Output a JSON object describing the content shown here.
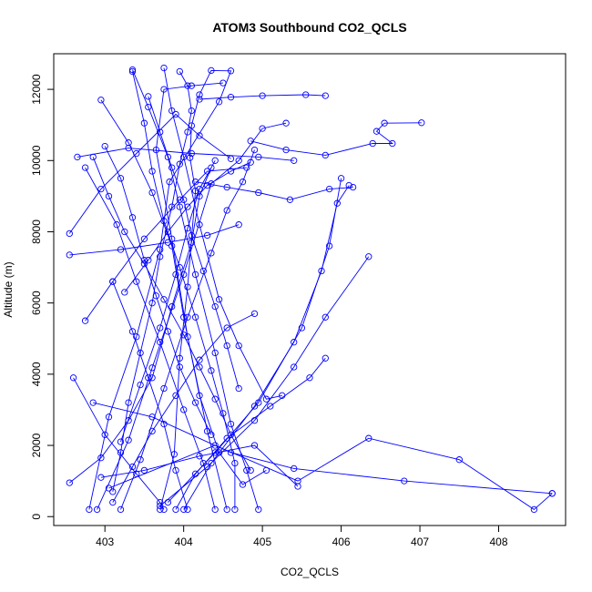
{
  "chart_data": {
    "type": "line",
    "title": "ATOM3 Southbound CO2_QCLS",
    "xlabel": "CO2_QCLS",
    "ylabel": "Altitude (m)",
    "xlim": [
      402.35,
      408.85
    ],
    "ylim": [
      -250,
      13000
    ],
    "xticks": [
      "403",
      "404",
      "405",
      "406",
      "407",
      "408"
    ],
    "yticks": [
      "0",
      "2000",
      "4000",
      "6000",
      "8000",
      "10000",
      "12000"
    ],
    "markers": "open-circle",
    "series_color": "#0000ff",
    "series": [
      {
        "points": [
          [
            403.7,
            200
          ],
          [
            403.88,
            1750
          ],
          [
            403.95,
            4450
          ],
          [
            404.05,
            6450
          ],
          [
            404.15,
            9150
          ],
          [
            404.08,
            10080
          ],
          [
            404.1,
            10980
          ],
          [
            404.2,
            11850
          ],
          [
            404.35,
            12530
          ],
          [
            404.6,
            12520
          ],
          [
            404.45,
            11650
          ],
          [
            403.82,
            9400
          ],
          [
            403.7,
            7500
          ],
          [
            403.4,
            5050
          ],
          [
            403.05,
            2800
          ],
          [
            402.8,
            200
          ]
        ]
      },
      {
        "points": [
          [
            402.9,
            200
          ],
          [
            403.3,
            2150
          ],
          [
            403.6,
            4180
          ],
          [
            404.0,
            6800
          ],
          [
            404.35,
            9350
          ],
          [
            404.7,
            10000
          ],
          [
            405.0,
            10900
          ],
          [
            405.3,
            11050
          ]
        ]
      },
      {
        "points": [
          [
            404.55,
            200
          ],
          [
            404.3,
            2400
          ],
          [
            404.05,
            5050
          ],
          [
            403.85,
            7800
          ],
          [
            403.65,
            10300
          ],
          [
            403.75,
            12000
          ],
          [
            404.1,
            12100
          ],
          [
            404.5,
            12180
          ]
        ]
      },
      {
        "points": [
          [
            402.55,
            7950
          ],
          [
            402.95,
            9200
          ],
          [
            403.4,
            10200
          ],
          [
            403.9,
            11300
          ],
          [
            404.2,
            10700
          ],
          [
            404.6,
            10050
          ]
        ]
      },
      {
        "points": [
          [
            402.55,
            7350
          ],
          [
            403.2,
            7500
          ],
          [
            403.8,
            7700
          ],
          [
            404.3,
            7900
          ],
          [
            404.7,
            8200
          ]
        ]
      },
      {
        "points": [
          [
            402.55,
            950
          ],
          [
            402.95,
            1650
          ],
          [
            403.3,
            2700
          ],
          [
            403.6,
            3900
          ],
          [
            403.85,
            5900
          ],
          [
            404.1,
            7700
          ],
          [
            404.2,
            9000
          ],
          [
            404.35,
            9800
          ]
        ]
      },
      {
        "points": [
          [
            402.6,
            3900
          ],
          [
            403.0,
            2300
          ],
          [
            403.4,
            1200
          ],
          [
            403.7,
            400
          ],
          [
            403.75,
            200
          ]
        ]
      },
      {
        "points": [
          [
            402.75,
            5500
          ],
          [
            403.1,
            6600
          ],
          [
            403.5,
            7800
          ],
          [
            403.95,
            8900
          ],
          [
            404.3,
            9700
          ],
          [
            404.8,
            9800
          ]
        ]
      },
      {
        "points": [
          [
            402.95,
            11700
          ],
          [
            403.3,
            10500
          ],
          [
            403.6,
            9100
          ],
          [
            403.85,
            7600
          ],
          [
            404.0,
            5600
          ],
          [
            404.2,
            3400
          ],
          [
            404.45,
            1800
          ],
          [
            404.75,
            900
          ],
          [
            405.05,
            1300
          ]
        ]
      },
      {
        "points": [
          [
            403.35,
            12550
          ],
          [
            403.55,
            11500
          ],
          [
            403.8,
            10100
          ],
          [
            403.95,
            8700
          ],
          [
            404.15,
            6800
          ],
          [
            404.4,
            4600
          ],
          [
            404.6,
            2600
          ],
          [
            404.8,
            1300
          ],
          [
            404.95,
            200
          ]
        ]
      },
      {
        "points": [
          [
            403.75,
            12600
          ],
          [
            403.85,
            11400
          ],
          [
            404.0,
            10100
          ],
          [
            404.2,
            8200
          ],
          [
            404.45,
            6100
          ],
          [
            404.7,
            4800
          ],
          [
            405.05,
            3300
          ],
          [
            405.25,
            3400
          ]
        ]
      },
      {
        "points": [
          [
            403.2,
            200
          ],
          [
            403.45,
            1600
          ],
          [
            403.75,
            3600
          ],
          [
            404.05,
            5600
          ],
          [
            404.35,
            7400
          ],
          [
            404.55,
            8600
          ],
          [
            404.75,
            9400
          ],
          [
            404.9,
            10300
          ]
        ]
      },
      {
        "points": [
          [
            403.9,
            200
          ],
          [
            404.15,
            1200
          ],
          [
            404.55,
            2200
          ],
          [
            405.1,
            3100
          ],
          [
            405.6,
            3900
          ],
          [
            405.8,
            4450
          ]
        ]
      },
      {
        "points": [
          [
            404.0,
            200
          ],
          [
            404.35,
            1500
          ],
          [
            404.9,
            3100
          ],
          [
            405.4,
            4900
          ],
          [
            405.75,
            6900
          ],
          [
            405.95,
            8800
          ],
          [
            406.1,
            9300
          ]
        ]
      },
      {
        "points": [
          [
            403.7,
            300
          ],
          [
            404.3,
            1400
          ],
          [
            404.9,
            2700
          ],
          [
            405.4,
            4200
          ],
          [
            405.8,
            5600
          ],
          [
            406.35,
            7300
          ]
        ]
      },
      {
        "points": [
          [
            403.8,
            400
          ],
          [
            404.4,
            1800
          ],
          [
            404.95,
            3200
          ],
          [
            405.5,
            5300
          ],
          [
            405.85,
            7600
          ],
          [
            406.0,
            9500
          ]
        ]
      },
      {
        "points": [
          [
            404.85,
            10550
          ],
          [
            405.3,
            10300
          ],
          [
            405.8,
            10150
          ],
          [
            406.4,
            10480
          ],
          [
            406.65,
            10480
          ],
          [
            406.45,
            10820
          ],
          [
            406.55,
            11050
          ],
          [
            407.02,
            11060
          ]
        ]
      },
      {
        "points": [
          [
            404.2,
            11720
          ],
          [
            404.6,
            11780
          ],
          [
            405.0,
            11820
          ],
          [
            405.55,
            11850
          ],
          [
            405.8,
            11820
          ]
        ]
      },
      {
        "points": [
          [
            403.05,
            800
          ],
          [
            404.4,
            2000
          ],
          [
            405.45,
            1000
          ],
          [
            406.35,
            2200
          ],
          [
            407.5,
            1600
          ],
          [
            408.45,
            200
          ],
          [
            408.68,
            650
          ]
        ]
      },
      {
        "points": [
          [
            402.85,
            3200
          ],
          [
            403.6,
            2800
          ],
          [
            404.6,
            1800
          ],
          [
            405.4,
            1350
          ],
          [
            406.8,
            1000
          ],
          [
            408.68,
            650
          ]
        ]
      },
      {
        "points": [
          [
            402.95,
            1100
          ],
          [
            403.5,
            1300
          ],
          [
            404.2,
            1700
          ],
          [
            404.9,
            2000
          ],
          [
            405.45,
            850
          ]
        ]
      },
      {
        "points": [
          [
            403.1,
            6600
          ],
          [
            403.35,
            5200
          ],
          [
            403.55,
            3900
          ],
          [
            403.75,
            2600
          ],
          [
            403.9,
            1300
          ],
          [
            404.05,
            200
          ]
        ]
      },
      {
        "points": [
          [
            402.75,
            9800
          ],
          [
            403.15,
            8200
          ],
          [
            403.4,
            6600
          ],
          [
            403.7,
            4900
          ],
          [
            404.0,
            3000
          ],
          [
            404.25,
            1500
          ],
          [
            404.4,
            200
          ]
        ]
      },
      {
        "points": [
          [
            402.65,
            10100
          ],
          [
            403.3,
            10350
          ],
          [
            404.1,
            10200
          ],
          [
            404.95,
            10100
          ],
          [
            405.4,
            10000
          ]
        ]
      },
      {
        "points": [
          [
            403.35,
            12500
          ],
          [
            403.5,
            11050
          ],
          [
            403.6,
            9700
          ],
          [
            403.75,
            8300
          ],
          [
            403.95,
            7000
          ],
          [
            404.15,
            5600
          ],
          [
            404.35,
            4100
          ],
          [
            404.5,
            2900
          ],
          [
            404.65,
            1500
          ],
          [
            404.65,
            200
          ]
        ]
      },
      {
        "points": [
          [
            403.2,
            2100
          ],
          [
            403.45,
            3700
          ],
          [
            403.7,
            5300
          ],
          [
            403.9,
            6800
          ],
          [
            404.05,
            8100
          ],
          [
            404.2,
            9200
          ],
          [
            404.4,
            10000
          ]
        ]
      },
      {
        "points": [
          [
            403.55,
            11800
          ],
          [
            403.7,
            10800
          ],
          [
            403.85,
            9800
          ],
          [
            404.0,
            8900
          ],
          [
            404.1,
            7900
          ],
          [
            404.25,
            6900
          ],
          [
            404.4,
            5900
          ],
          [
            404.55,
            4800
          ],
          [
            404.7,
            3600
          ]
        ]
      },
      {
        "points": [
          [
            403.95,
            12500
          ],
          [
            404.05,
            12100
          ],
          [
            404.1,
            11400
          ],
          [
            404.05,
            10800
          ],
          [
            403.95,
            9900
          ],
          [
            403.85,
            8700
          ],
          [
            403.7,
            7300
          ],
          [
            403.6,
            6000
          ],
          [
            403.45,
            4600
          ],
          [
            403.3,
            3200
          ],
          [
            403.2,
            1800
          ],
          [
            403.1,
            700
          ]
        ]
      },
      {
        "points": [
          [
            403.1,
            400
          ],
          [
            403.35,
            1400
          ],
          [
            403.6,
            2400
          ],
          [
            403.9,
            3400
          ],
          [
            404.2,
            4400
          ],
          [
            404.55,
            5300
          ],
          [
            404.9,
            5700
          ]
        ]
      },
      {
        "points": [
          [
            404.15,
            9400
          ],
          [
            404.55,
            9250
          ],
          [
            404.95,
            9100
          ],
          [
            405.35,
            8900
          ],
          [
            405.85,
            9200
          ],
          [
            406.15,
            9250
          ]
        ]
      },
      {
        "points": [
          [
            403.0,
            10400
          ],
          [
            403.2,
            9500
          ],
          [
            403.35,
            8400
          ],
          [
            403.5,
            7200
          ],
          [
            403.65,
            6200
          ],
          [
            403.8,
            5200
          ],
          [
            403.95,
            4200
          ],
          [
            404.15,
            3200
          ],
          [
            404.35,
            2300
          ]
        ]
      },
      {
        "points": [
          [
            403.25,
            6300
          ],
          [
            403.55,
            7200
          ],
          [
            403.8,
            8000
          ],
          [
            404.05,
            8700
          ],
          [
            404.3,
            9300
          ],
          [
            404.6,
            9700
          ],
          [
            404.85,
            9950
          ]
        ]
      },
      {
        "points": [
          [
            402.85,
            10100
          ],
          [
            403.05,
            9000
          ],
          [
            403.25,
            8000
          ],
          [
            403.5,
            7100
          ],
          [
            403.75,
            6100
          ],
          [
            404.0,
            5100
          ],
          [
            404.2,
            4200
          ],
          [
            404.4,
            3300
          ],
          [
            404.6,
            2300
          ],
          [
            404.85,
            1300
          ]
        ]
      }
    ]
  }
}
